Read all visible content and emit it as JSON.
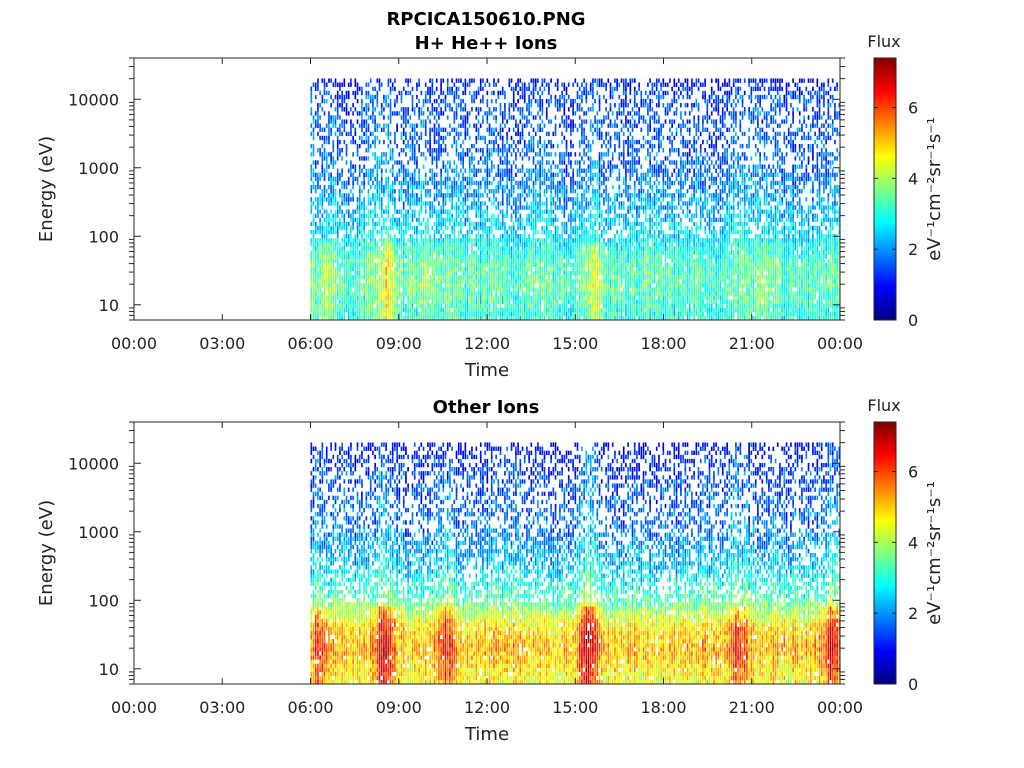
{
  "figure": {
    "title": "RPCICA150610.PNG"
  },
  "colors": {
    "axis": "#262626",
    "colormap": [
      "#00007f",
      "#0000ff",
      "#007fff",
      "#00ffff",
      "#7fff7f",
      "#ffff00",
      "#ff7f00",
      "#ff0000",
      "#7f0000"
    ]
  },
  "chart_data": [
    {
      "type": "heatmap",
      "title": "H+ He++ Ions",
      "xlabel": "Time",
      "ylabel": "Energy (eV)",
      "x_ticks": [
        "00:00",
        "03:00",
        "06:00",
        "09:00",
        "12:00",
        "15:00",
        "18:00",
        "21:00",
        "00:00"
      ],
      "y_ticks": [
        "10",
        "100",
        "1000",
        "10000"
      ],
      "y_scale": "log",
      "xlim_hours": [
        0,
        24
      ],
      "ylim": [
        6,
        40000
      ],
      "data_start_hour": 6,
      "colorbar": {
        "title": "Flux",
        "label": "eV⁻¹cm⁻²sr⁻¹s⁻¹",
        "ticks": [
          "0",
          "2",
          "4",
          "6"
        ],
        "range": [
          0,
          7.4
        ]
      },
      "profile": [
        {
          "energy": 7,
          "flux": 3.0
        },
        {
          "energy": 20,
          "flux": 3.4
        },
        {
          "energy": 40,
          "flux": 3.3
        },
        {
          "energy": 100,
          "flux": 2.6
        },
        {
          "energy": 300,
          "flux": 2.2
        },
        {
          "energy": 1000,
          "flux": 1.7
        },
        {
          "energy": 5000,
          "flux": 1.5
        },
        {
          "energy": 12000,
          "flux": 1.4
        },
        {
          "energy": 20000,
          "flux": 0.9
        }
      ],
      "features": [
        {
          "hour": 6.5,
          "flux_boost": 0.8
        },
        {
          "hour": 8.6,
          "flux_boost": 1.4
        },
        {
          "hour": 10.2,
          "flux_boost": 0.6
        },
        {
          "hour": 15.6,
          "flux_boost": 1.1
        },
        {
          "hour": 21.5,
          "flux_boost": 0.4
        }
      ]
    },
    {
      "type": "heatmap",
      "title": "Other Ions",
      "xlabel": "Time",
      "ylabel": "Energy (eV)",
      "x_ticks": [
        "00:00",
        "03:00",
        "06:00",
        "09:00",
        "12:00",
        "15:00",
        "18:00",
        "21:00",
        "00:00"
      ],
      "y_ticks": [
        "10",
        "100",
        "1000",
        "10000"
      ],
      "y_scale": "log",
      "xlim_hours": [
        0,
        24
      ],
      "ylim": [
        6,
        40000
      ],
      "data_start_hour": 6,
      "colorbar": {
        "title": "Flux",
        "label": "eV⁻¹cm⁻²sr⁻¹s⁻¹",
        "ticks": [
          "0",
          "2",
          "4",
          "6"
        ],
        "range": [
          0,
          7.4
        ]
      },
      "profile": [
        {
          "energy": 7,
          "flux": 4.6
        },
        {
          "energy": 20,
          "flux": 5.2
        },
        {
          "energy": 40,
          "flux": 4.8
        },
        {
          "energy": 100,
          "flux": 3.4
        },
        {
          "energy": 300,
          "flux": 2.4
        },
        {
          "energy": 1000,
          "flux": 1.8
        },
        {
          "energy": 5000,
          "flux": 1.4
        },
        {
          "energy": 12000,
          "flux": 1.2
        },
        {
          "energy": 20000,
          "flux": 0.8
        }
      ],
      "features": [
        {
          "hour": 6.3,
          "flux_boost": 1.2
        },
        {
          "hour": 8.5,
          "flux_boost": 1.8
        },
        {
          "hour": 10.6,
          "flux_boost": 1.3
        },
        {
          "hour": 15.4,
          "flux_boost": 1.7
        },
        {
          "hour": 20.5,
          "flux_boost": 1.1
        },
        {
          "hour": 23.7,
          "flux_boost": 1.5
        }
      ]
    }
  ]
}
